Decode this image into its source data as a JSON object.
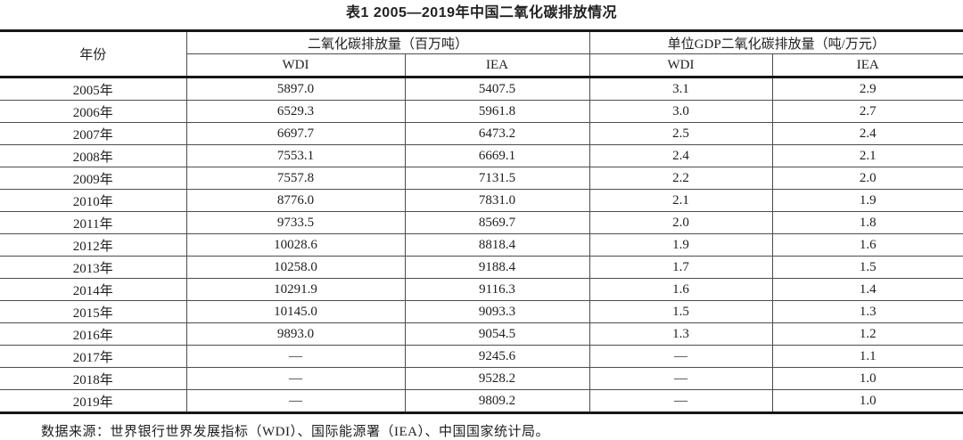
{
  "title": "表1 2005—2019年中国二氧化碳排放情况",
  "table": {
    "header": {
      "year": "年份",
      "group1": "二氧化碳排放量（百万吨）",
      "group2": "单位GDP二氧化碳排放量（吨/万元）",
      "sub": [
        "WDI",
        "IEA",
        "WDI",
        "IEA"
      ]
    },
    "rows": [
      {
        "year": "2005年",
        "values": [
          "5897.0",
          "5407.5",
          "3.1",
          "2.9"
        ]
      },
      {
        "year": "2006年",
        "values": [
          "6529.3",
          "5961.8",
          "3.0",
          "2.7"
        ]
      },
      {
        "year": "2007年",
        "values": [
          "6697.7",
          "6473.2",
          "2.5",
          "2.4"
        ]
      },
      {
        "year": "2008年",
        "values": [
          "7553.1",
          "6669.1",
          "2.4",
          "2.1"
        ]
      },
      {
        "year": "2009年",
        "values": [
          "7557.8",
          "7131.5",
          "2.2",
          "2.0"
        ]
      },
      {
        "year": "2010年",
        "values": [
          "8776.0",
          "7831.0",
          "2.1",
          "1.9"
        ]
      },
      {
        "year": "2011年",
        "values": [
          "9733.5",
          "8569.7",
          "2.0",
          "1.8"
        ]
      },
      {
        "year": "2012年",
        "values": [
          "10028.6",
          "8818.4",
          "1.9",
          "1.6"
        ]
      },
      {
        "year": "2013年",
        "values": [
          "10258.0",
          "9188.4",
          "1.7",
          "1.5"
        ]
      },
      {
        "year": "2014年",
        "values": [
          "10291.9",
          "9116.3",
          "1.6",
          "1.4"
        ]
      },
      {
        "year": "2015年",
        "values": [
          "10145.0",
          "9093.3",
          "1.5",
          "1.3"
        ]
      },
      {
        "year": "2016年",
        "values": [
          "9893.0",
          "9054.5",
          "1.3",
          "1.2"
        ]
      },
      {
        "year": "2017年",
        "values": [
          "—",
          "9245.6",
          "—",
          "1.1"
        ]
      },
      {
        "year": "2018年",
        "values": [
          "—",
          "9528.2",
          "—",
          "1.0"
        ]
      },
      {
        "year": "2019年",
        "values": [
          "—",
          "9809.2",
          "—",
          "1.0"
        ]
      }
    ]
  },
  "footer": {
    "source": "数据来源：世界银行世界发展指标（WDI）、国际能源署（IEA）、中国国家统计局。"
  },
  "colors": {
    "thick_rule": "#161616",
    "thin_rule": "#4d4d4d",
    "text": "#1e1e1e",
    "background": "#ffffff"
  }
}
